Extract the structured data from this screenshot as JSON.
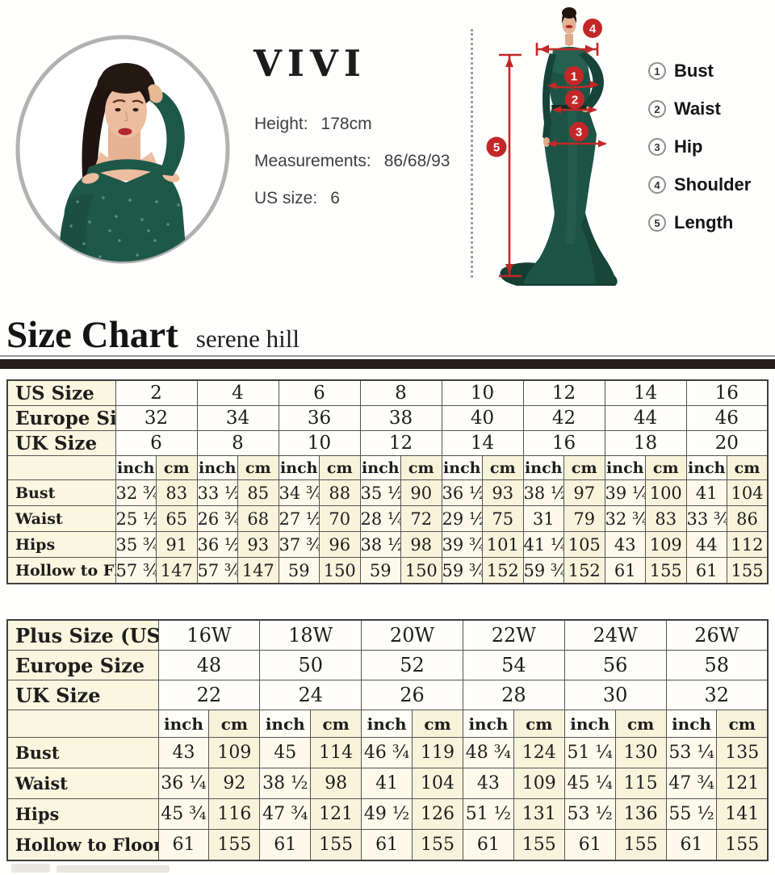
{
  "header": {
    "brand": "VIVI",
    "info": [
      {
        "label": "Height:",
        "value": "178cm"
      },
      {
        "label": "Measurements:",
        "value": "86/68/93"
      },
      {
        "label": "US size:",
        "value": "6"
      }
    ]
  },
  "figure": {
    "markers": [
      "1",
      "2",
      "3",
      "4",
      "5"
    ]
  },
  "legend": {
    "items": [
      {
        "num": "1",
        "label": "Bust"
      },
      {
        "num": "2",
        "label": "Waist"
      },
      {
        "num": "3",
        "label": "Hip"
      },
      {
        "num": "4",
        "label": "Shoulder"
      },
      {
        "num": "5",
        "label": "Length"
      }
    ]
  },
  "section": {
    "title": "Size Chart",
    "subtitle": "serene hill"
  },
  "colors": {
    "accent_red": "#c32728",
    "dress_green": "#1d5445",
    "table_cream": "#faf6df",
    "divider_dark": "#261d18"
  },
  "tables": [
    {
      "name": "standard",
      "size_rows": [
        {
          "label": "US Size",
          "values": [
            "2",
            "4",
            "6",
            "8",
            "10",
            "12",
            "14",
            "16"
          ]
        },
        {
          "label": "Europe Size",
          "values": [
            "32",
            "34",
            "36",
            "38",
            "40",
            "42",
            "44",
            "46"
          ]
        },
        {
          "label": "UK Size",
          "values": [
            "6",
            "8",
            "10",
            "12",
            "14",
            "16",
            "18",
            "20"
          ]
        }
      ],
      "units": [
        "inch",
        "cm"
      ],
      "measure_rows": [
        {
          "label": "Bust",
          "inch": [
            "32 ¾",
            "33 ½",
            "34 ¾",
            "35 ½",
            "36 ½",
            "38 ½",
            "39 ¼",
            "41"
          ],
          "cm": [
            "83",
            "85",
            "88",
            "90",
            "93",
            "97",
            "100",
            "104"
          ]
        },
        {
          "label": "Waist",
          "inch": [
            "25 ½",
            "26 ¾",
            "27 ½",
            "28 ¼",
            "29 ½",
            "31",
            "32 ¾",
            "33 ¾"
          ],
          "cm": [
            "65",
            "68",
            "70",
            "72",
            "75",
            "79",
            "83",
            "86"
          ]
        },
        {
          "label": "Hips",
          "inch": [
            "35 ¾",
            "36 ½",
            "37 ¾",
            "38 ½",
            "39 ¾",
            "41 ¼",
            "43",
            "44"
          ],
          "cm": [
            "91",
            "93",
            "96",
            "98",
            "101",
            "105",
            "109",
            "112"
          ]
        },
        {
          "label": "Hollow to Floor",
          "inch": [
            "57 ¾",
            "57 ¾",
            "59",
            "59",
            "59 ¾",
            "59 ¾",
            "61",
            "61"
          ],
          "cm": [
            "147",
            "147",
            "150",
            "150",
            "152",
            "152",
            "155",
            "155"
          ]
        }
      ]
    },
    {
      "name": "plus",
      "size_rows": [
        {
          "label": "Plus Size (US)",
          "values": [
            "16W",
            "18W",
            "20W",
            "22W",
            "24W",
            "26W"
          ]
        },
        {
          "label": "Europe Size",
          "values": [
            "48",
            "50",
            "52",
            "54",
            "56",
            "58"
          ]
        },
        {
          "label": "UK Size",
          "values": [
            "22",
            "24",
            "26",
            "28",
            "30",
            "32"
          ]
        }
      ],
      "units": [
        "inch",
        "cm"
      ],
      "measure_rows": [
        {
          "label": "Bust",
          "inch": [
            "43",
            "45",
            "46 ¾",
            "48 ¾",
            "51 ¼",
            "53 ¼"
          ],
          "cm": [
            "109",
            "114",
            "119",
            "124",
            "130",
            "135"
          ]
        },
        {
          "label": "Waist",
          "inch": [
            "36 ¼",
            "38 ½",
            "41",
            "43",
            "45 ¼",
            "47 ¾"
          ],
          "cm": [
            "92",
            "98",
            "104",
            "109",
            "115",
            "121"
          ]
        },
        {
          "label": "Hips",
          "inch": [
            "45 ¾",
            "47 ¾",
            "49 ½",
            "51 ½",
            "53 ½",
            "55 ½"
          ],
          "cm": [
            "116",
            "121",
            "126",
            "131",
            "136",
            "141"
          ]
        },
        {
          "label": "Hollow to Floor",
          "inch": [
            "61",
            "61",
            "61",
            "61",
            "61",
            "61"
          ],
          "cm": [
            "155",
            "155",
            "155",
            "155",
            "155",
            "155"
          ]
        }
      ]
    }
  ]
}
